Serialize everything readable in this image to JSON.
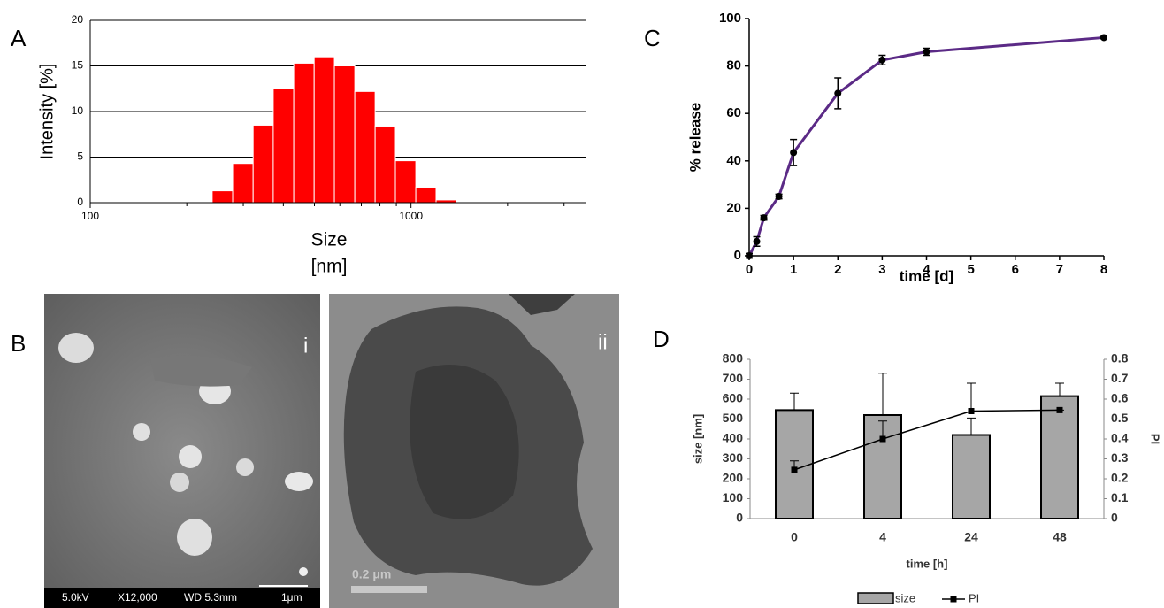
{
  "panel_labels": [
    "A",
    "B",
    "C",
    "D"
  ],
  "images": {
    "sem": {
      "label": "i",
      "info": [
        "5.0kV",
        "X12,000",
        "WD 5.3mm",
        "1μm"
      ]
    },
    "tem": {
      "label": "ii",
      "scale": "0.2 μm"
    }
  },
  "chart_data": [
    {
      "type": "histogram",
      "log_x": true,
      "bins": [
        240,
        278,
        322,
        372,
        431,
        499,
        577,
        668,
        773,
        894,
        1035,
        1197,
        1385
      ],
      "values": [
        1.3,
        4.3,
        8.5,
        12.5,
        15.3,
        16,
        15,
        12.2,
        8.4,
        4.6,
        1.7,
        0.3
      ],
      "color": "#ff0000",
      "xlim": [
        100,
        3500
      ],
      "xticks": [
        100,
        1000
      ],
      "xminorticks": [
        200,
        300,
        400,
        500,
        600,
        700,
        800,
        900,
        2000,
        3000
      ],
      "ylim": [
        0,
        20
      ],
      "yticks": [
        0,
        5,
        10,
        15,
        20
      ],
      "grid": true,
      "xlabel": [
        "Size",
        "[nm]"
      ],
      "ylabel": "Intensity [%]"
    },
    {
      "type": "line",
      "x": [
        0,
        0.17,
        0.33,
        0.67,
        1,
        2,
        3,
        4,
        8
      ],
      "series": [
        {
          "color": "#5b2a86",
          "values": [
            0,
            6,
            16,
            25,
            43.5,
            68.5,
            82.5,
            86,
            92
          ],
          "errors": [
            1,
            2,
            1,
            1,
            5.5,
            6.5,
            2,
            1.5,
            0.5
          ]
        }
      ],
      "xlim": [
        0,
        8
      ],
      "xticks": [
        0,
        1,
        2,
        3,
        4,
        5,
        6,
        7,
        8
      ],
      "ylim": [
        0,
        100
      ],
      "yticks": [
        0,
        20,
        40,
        60,
        80,
        100
      ],
      "xlabel": "time [d]",
      "ylabel": "% release"
    },
    {
      "type": "bar_line",
      "categories": [
        "0",
        "4",
        "24",
        "48"
      ],
      "series": [
        {
          "name": "size",
          "type": "bar",
          "color": "#a6a6a6",
          "values": [
            545,
            520,
            420,
            615
          ],
          "errors": [
            85,
            210,
            85,
            65
          ]
        },
        {
          "name": "PI",
          "type": "line",
          "axis": "y2",
          "color": "#000000",
          "values": [
            0.245,
            0.4,
            0.54,
            0.545
          ],
          "errors": [
            0.045,
            0.09,
            0.14,
            0
          ]
        }
      ],
      "ylim": [
        0,
        800
      ],
      "yticks": [
        0,
        100,
        200,
        300,
        400,
        500,
        600,
        700,
        800
      ],
      "y2lim": [
        0,
        0.8
      ],
      "y2ticks": [
        0,
        0.1,
        0.2,
        0.3,
        0.4,
        0.5,
        0.6,
        0.7,
        0.8
      ],
      "xlabel": "time [h]",
      "ylabel": "size [nm]",
      "y2label": "PI"
    }
  ]
}
